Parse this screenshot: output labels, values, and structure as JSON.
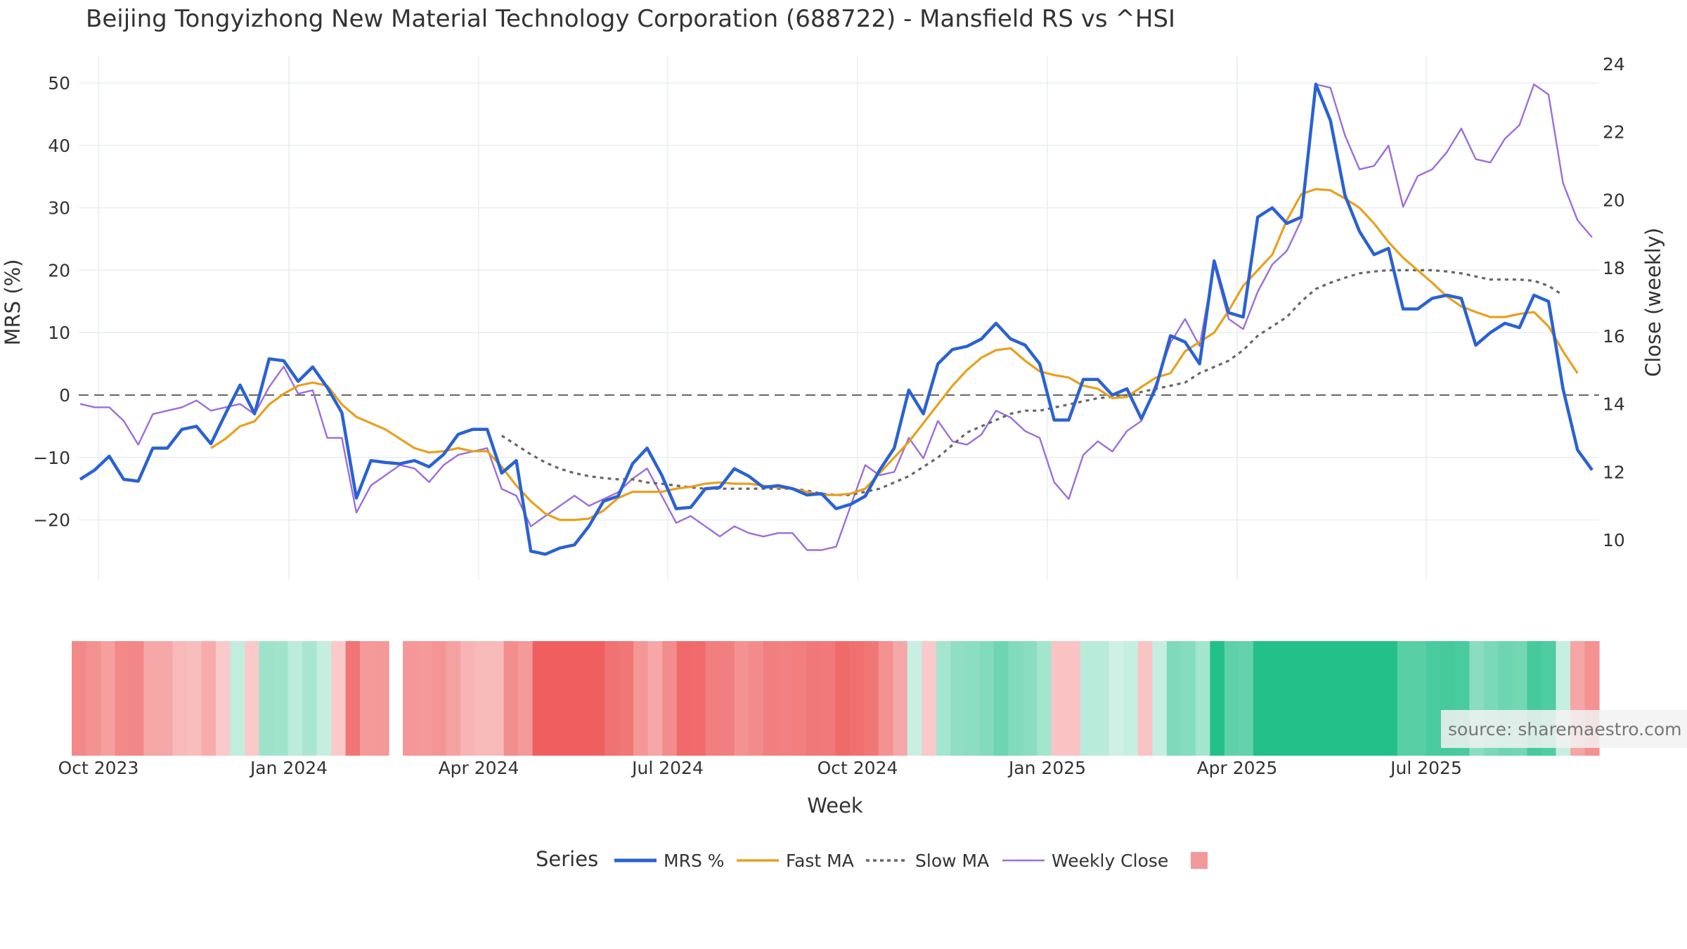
{
  "title": "Beijing Tongyizhong New Material Technology Corporation (688722) - Mansfield RS vs ^HSI",
  "source": "source: sharemaestro.com",
  "colors": {
    "mrs": "#2a62d2",
    "fast_ma": "#e6a11f",
    "slow_ma": "#666666",
    "close": "#9b6fd8",
    "zero_line": "#666666",
    "heat_neg": "#ef5f5f",
    "heat_pos": "#24c08a",
    "grid": "#e9edf1"
  },
  "chart_data": {
    "type": "line",
    "title": "Beijing Tongyizhong New Material Technology Corporation (688722) - Mansfield RS vs ^HSI",
    "xlabel": "Week",
    "ylabel": "MRS (%)",
    "y2label": "Close (weekly)",
    "x_ticks": [
      "Oct 2023",
      "Jan 2024",
      "Apr 2024",
      "Jul 2024",
      "Oct 2024",
      "Jan 2025",
      "Apr 2025",
      "Jul 2025"
    ],
    "y_ticks": [
      50,
      40,
      30,
      20,
      10,
      0,
      -10,
      -20
    ],
    "y_tick_labels": [
      "50",
      "40",
      "30",
      "20",
      "10",
      "0",
      "−10",
      "−20"
    ],
    "y2_ticks": [
      24,
      22,
      20,
      18,
      16,
      14,
      12,
      10
    ],
    "y2_tick_labels": [
      "24",
      "22",
      "20",
      "18",
      "16",
      "14",
      "12",
      "10"
    ],
    "ylim": [
      -29,
      54
    ],
    "y2lim": [
      9,
      24
    ],
    "grid": true,
    "legend_title": "Series",
    "legend_position": "bottom",
    "reference_line": {
      "y": 0,
      "style": "dashed"
    },
    "series": [
      {
        "name": "MRS %",
        "axis": "left",
        "values": [
          -13.5,
          -12,
          -9.8,
          -13.5,
          -13.8,
          -8.5,
          -8.5,
          -5.5,
          -5,
          -7.8,
          -3,
          1.6,
          -3,
          5.8,
          5.5,
          2.2,
          4.5,
          1.2,
          -2.8,
          -16.5,
          -10.5,
          -10.8,
          -11,
          -10.5,
          -11.5,
          -9.5,
          -6.3,
          -5.5,
          -5.5,
          -12.5,
          -10.5,
          -25,
          -25.5,
          -24.5,
          -24,
          -21,
          -17,
          -16.2,
          -11,
          -8.5,
          -12.8,
          -18.2,
          -18,
          -15,
          -14.8,
          -11.8,
          -13,
          -14.8,
          -14.5,
          -15,
          -16,
          -15.8,
          -18.2,
          -17.5,
          -16.2,
          -12,
          -8.5,
          0.8,
          -3,
          5,
          7.3,
          7.8,
          9,
          11.5,
          9,
          8,
          5,
          -4,
          -4,
          2.5,
          2.5,
          0,
          1,
          -3.8,
          1.2,
          9.5,
          8.5,
          5,
          21.5,
          13.2,
          12.5,
          28.5,
          30,
          27.5,
          28.5,
          49.8,
          44,
          32,
          26.2,
          22.5,
          23.5,
          13.8,
          13.8,
          15.5,
          16,
          15.5,
          8,
          10,
          11.5,
          10.8,
          16,
          15,
          1,
          -8.8,
          -12
        ]
      },
      {
        "name": "Fast MA",
        "axis": "left",
        "values": [
          null,
          null,
          null,
          null,
          null,
          null,
          null,
          null,
          null,
          -8.5,
          -7,
          -5,
          -4.2,
          -1.5,
          0.2,
          1.5,
          2,
          1.5,
          -1.5,
          -3.5,
          -4.5,
          -5.5,
          -7,
          -8.5,
          -9.2,
          -9,
          -8.5,
          -9,
          -9,
          -11.5,
          -14.5,
          -17,
          -19,
          -20,
          -20,
          -19.8,
          -18.5,
          -16.5,
          -15.5,
          -15.5,
          -15.5,
          -15,
          -14.7,
          -14.2,
          -14,
          -14.2,
          -14.2,
          -14.5,
          -14.8,
          -15,
          -15.5,
          -16,
          -16,
          -15.8,
          -15,
          -12.5,
          -10,
          -7.5,
          -4.5,
          -1.5,
          1.5,
          4,
          6,
          7.2,
          7.5,
          5.5,
          3.8,
          3.2,
          2.8,
          1.5,
          1,
          -0.5,
          -0.3,
          1.3,
          2.8,
          3.5,
          7,
          8.5,
          10,
          13.5,
          17.5,
          20,
          22.5,
          28,
          32.2,
          33,
          32.8,
          31.5,
          30,
          27.5,
          24.5,
          22,
          20,
          18,
          15.8,
          14.2,
          13.3,
          12.5,
          12.5,
          13,
          13.3,
          11,
          7,
          3.5
        ]
      },
      {
        "name": "Slow MA",
        "axis": "left",
        "values": [
          null,
          null,
          null,
          null,
          null,
          null,
          null,
          null,
          null,
          null,
          null,
          null,
          null,
          null,
          null,
          null,
          null,
          null,
          null,
          null,
          null,
          null,
          null,
          null,
          null,
          null,
          null,
          null,
          null,
          -6.5,
          -8,
          -9.5,
          -10.8,
          -11.8,
          -12.5,
          -13,
          -13.3,
          -13.5,
          -13.5,
          -14,
          -14.2,
          -14.5,
          -14.8,
          -15,
          -15,
          -15,
          -15,
          -15,
          -15,
          -15,
          -15.3,
          -15.8,
          -16,
          -16,
          -15.5,
          -15,
          -14,
          -13,
          -11.5,
          -10,
          -8,
          -6,
          -5,
          -4,
          -3,
          -2.5,
          -2.5,
          -2,
          -1.5,
          -1,
          -0.5,
          -0.3,
          0,
          0.5,
          1,
          1.5,
          2,
          3.5,
          4.5,
          5.5,
          7.2,
          9.5,
          11,
          12.5,
          15,
          17,
          18,
          18.8,
          19.5,
          19.8,
          20,
          20,
          20,
          20,
          19.8,
          19.5,
          19,
          18.5,
          18.5,
          18.5,
          18.3,
          17.5,
          16
        ]
      },
      {
        "name": "Weekly Close",
        "axis": "right",
        "values": [
          14,
          13.9,
          13.9,
          13.5,
          12.8,
          13.7,
          13.8,
          13.9,
          14.1,
          13.8,
          13.9,
          14,
          13.7,
          14.5,
          15.1,
          14.3,
          14.4,
          13,
          13,
          10.8,
          11.6,
          11.9,
          12.2,
          12.1,
          11.7,
          12.2,
          12.5,
          12.6,
          12.7,
          11.5,
          11.3,
          10.4,
          10.7,
          11,
          11.3,
          11,
          11.2,
          11.4,
          11.8,
          12.1,
          11.3,
          10.5,
          10.7,
          10.4,
          10.1,
          10.4,
          10.2,
          10.1,
          10.2,
          10.2,
          9.7,
          9.7,
          9.8,
          11,
          12.2,
          11.9,
          12,
          13,
          12.4,
          13.5,
          12.9,
          12.8,
          13.1,
          13.8,
          13.6,
          13.2,
          13,
          11.7,
          11.2,
          12.5,
          12.9,
          12.6,
          13.2,
          13.5,
          14.6,
          15.8,
          16.5,
          15.7,
          18.1,
          16.5,
          16.2,
          17.3,
          18.1,
          18.5,
          19.4,
          23.4,
          23.3,
          21.9,
          20.9,
          21,
          21.6,
          19.8,
          20.7,
          20.9,
          21.4,
          22.1,
          21.2,
          21.1,
          21.8,
          22.2,
          23.4,
          23.1,
          20.5,
          19.4,
          18.9
        ]
      }
    ],
    "heatmap_strip": {
      "description_values": "MRS values mapped to red (negative) / green (positive) colour intensity",
      "gaps_after_index": [
        21
      ]
    }
  }
}
